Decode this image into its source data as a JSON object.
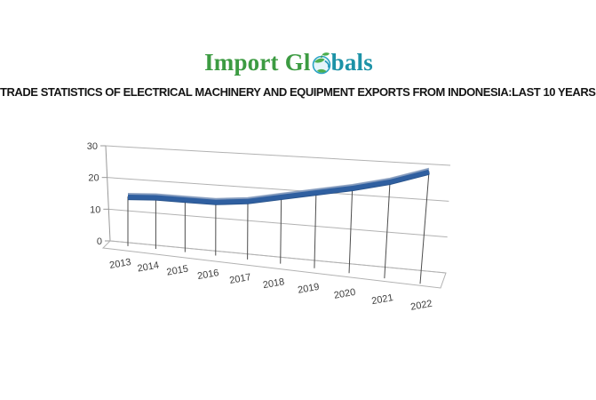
{
  "logo": {
    "part1": "Import Gl",
    "part2": "bals",
    "green_color": "#3c9b42",
    "teal_color": "#1c92a7"
  },
  "title": "TRADE STATISTICS OF ELECTRICAL MACHINERY AND EQUIPMENT EXPORTS FROM INDONESIA:LAST 10 YEARS",
  "chart_data": {
    "type": "line",
    "style": "3d-ribbon",
    "title": "",
    "xlabel": "",
    "ylabel": "",
    "categories": [
      "2013",
      "2014",
      "2015",
      "2016",
      "2017",
      "2018",
      "2019",
      "2020",
      "2021",
      "2022"
    ],
    "values": [
      14.5,
      15,
      15,
      15,
      16,
      18,
      20,
      22,
      24.5,
      28
    ],
    "yticks": [
      0,
      10,
      20,
      30
    ],
    "ylim": [
      0,
      30
    ],
    "grid": true,
    "legend": false,
    "drop_lines": true,
    "colors": {
      "ribbon": "#2f5fa0",
      "ribbon_shadow": "#1e4a84",
      "ribbon_highlight": "#8ba0c0",
      "gridline": "#b2b2b2",
      "axis": "#999999",
      "drop_line": "#4d4d4d",
      "tick_label": "#3f3f3f"
    }
  }
}
